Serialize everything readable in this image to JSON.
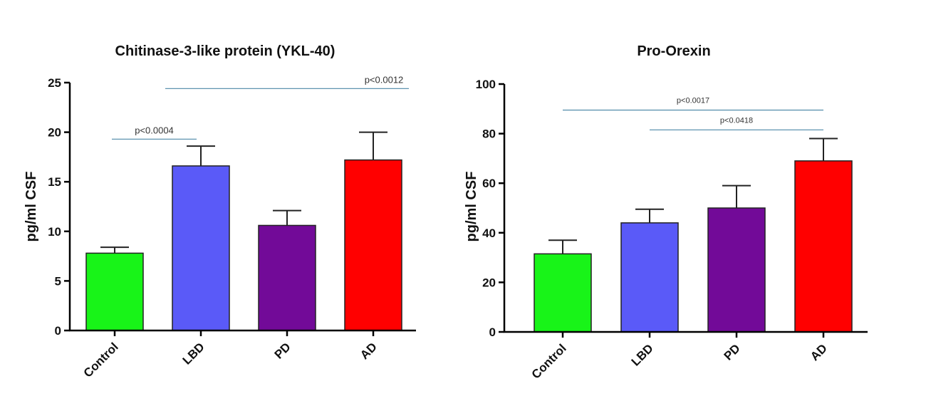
{
  "chart_data": [
    {
      "type": "bar",
      "title": "Chitinase-3-like protein (YKL-40)",
      "ylabel": "pg/ml CSF",
      "xlabel": "",
      "categories": [
        "Control",
        "LBD",
        "PD",
        "AD"
      ],
      "values": [
        7.8,
        16.6,
        10.6,
        17.2
      ],
      "errors": [
        0.6,
        2.0,
        1.5,
        2.8
      ],
      "colors": [
        "#18f418",
        "#5a5af8",
        "#720a98",
        "#ff0000"
      ],
      "ylim": [
        0,
        25
      ],
      "yticks": [
        0,
        5,
        10,
        15,
        20,
        25
      ],
      "significance": [
        {
          "from": "Control",
          "to": "LBD",
          "label": "p<0.0004",
          "y": 19.3
        },
        {
          "from": "LBD",
          "to": "AD",
          "label": "p<0.0012",
          "y": 24.4
        }
      ]
    },
    {
      "type": "bar",
      "title": "Pro-Orexin",
      "ylabel": "pg/ml CSF",
      "xlabel": "",
      "categories": [
        "Control",
        "LBD",
        "PD",
        "AD"
      ],
      "values": [
        31.5,
        44,
        50,
        69
      ],
      "errors": [
        5.5,
        5.5,
        9,
        9
      ],
      "colors": [
        "#18f418",
        "#5a5af8",
        "#720a98",
        "#ff0000"
      ],
      "ylim": [
        0,
        100
      ],
      "yticks": [
        0,
        20,
        40,
        60,
        80,
        100
      ],
      "significance": [
        {
          "from": "Control",
          "to": "AD",
          "label": "p<0.0017",
          "y": 89.5
        },
        {
          "from": "LBD",
          "to": "AD",
          "label": "p<0.0418",
          "y": 81.5
        }
      ]
    }
  ]
}
